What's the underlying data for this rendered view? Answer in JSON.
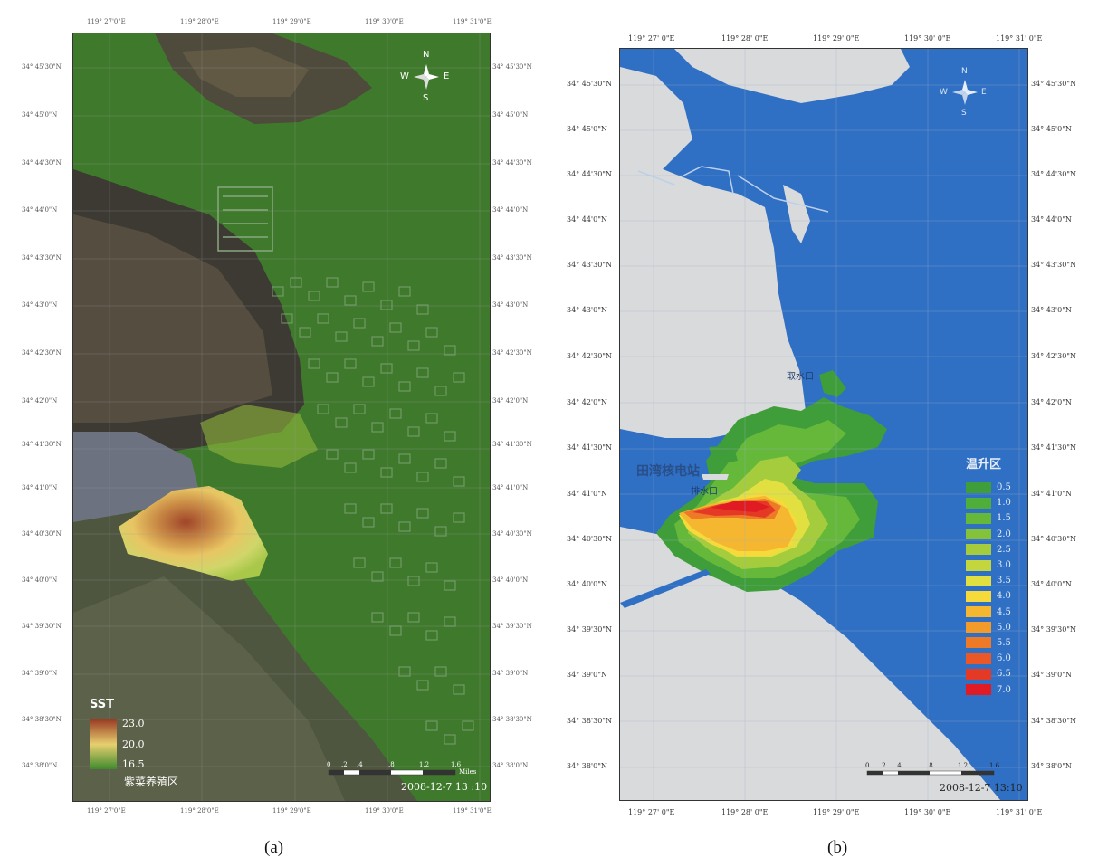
{
  "panel_a": {
    "caption": "(a)",
    "legend_title": "SST",
    "legend_max": "23.0",
    "legend_mid": "20.0",
    "legend_min": "16.5",
    "legend_note": "紫菜养殖区",
    "timestamp": "2008-12-7 13 :10",
    "scale_labels": [
      "0",
      ".2",
      ".4",
      ".8",
      "1.2",
      "1.6"
    ],
    "scale_unit": "Miles",
    "compass": {
      "n": "N",
      "s": "S",
      "e": "E",
      "w": "W"
    },
    "x_ticks": [
      "119° 27'0\"E",
      "119° 28'0\"E",
      "119° 29'0\"E",
      "119° 30'0\"E",
      "119° 31'0\"E"
    ],
    "y_ticks_left": [
      "34° 45'30\"N",
      "34° 45'0\"N",
      "34° 44'30\"N",
      "34° 44'0\"N",
      "34° 43'30\"N",
      "34° 43'0\"N",
      "34° 42'30\"N",
      "34° 42'0\"N",
      "34° 41'30\"N",
      "34° 41'0\"N",
      "34° 40'30\"N",
      "34° 40'0\"N",
      "34° 39'30\"N",
      "34° 39'0\"N",
      "34° 38'30\"N",
      "34° 38'0\"N"
    ],
    "colors": {
      "water": "#3f7a2c",
      "plume_hot": "#a0452a",
      "plume_mid": "#e8c563",
      "plume_cool": "#a9c84a"
    }
  },
  "panel_b": {
    "caption": "(b)",
    "station_label": "田湾核电站",
    "outlet_label": "排水口",
    "intake_label": "取水口",
    "legend_title": "温升区",
    "legend_items": [
      {
        "label": "0.5",
        "color": "#3f9e3a"
      },
      {
        "label": "1.0",
        "color": "#4fae3a"
      },
      {
        "label": "1.5",
        "color": "#66b83a"
      },
      {
        "label": "2.0",
        "color": "#84c23a"
      },
      {
        "label": "2.5",
        "color": "#a4cc3c"
      },
      {
        "label": "3.0",
        "color": "#c4d63e"
      },
      {
        "label": "3.5",
        "color": "#e2e040"
      },
      {
        "label": "4.0",
        "color": "#f6d93a"
      },
      {
        "label": "4.5",
        "color": "#f5b730"
      },
      {
        "label": "5.0",
        "color": "#f29a2a"
      },
      {
        "label": "5.5",
        "color": "#ee7a28"
      },
      {
        "label": "6.0",
        "color": "#e95826"
      },
      {
        "label": "6.5",
        "color": "#e43a25"
      },
      {
        "label": "7.0",
        "color": "#e01b24"
      }
    ],
    "timestamp": "2008-12-7 13:10",
    "scale_labels": [
      "0",
      ".2",
      ".4",
      ".8",
      "1.2",
      "1.6"
    ],
    "compass": {
      "n": "N",
      "s": "S",
      "e": "E",
      "w": "W"
    },
    "x_ticks": [
      "119° 27' 0\"E",
      "119° 28' 0\"E",
      "119° 29' 0\"E",
      "119° 30' 0\"E",
      "119° 31' 0\"E"
    ],
    "y_ticks": [
      "34° 45'30\"N",
      "34° 45'0\"N",
      "34° 44'30\"N",
      "34° 44'0\"N",
      "34° 43'30\"N",
      "34° 43'0\"N",
      "34° 42'30\"N",
      "34° 42'0\"N",
      "34° 41'30\"N",
      "34° 41'0\"N",
      "34° 40'30\"N",
      "34° 40'0\"N",
      "34° 39'30\"N",
      "34° 39'0\"N",
      "34° 38'30\"N",
      "34° 38'0\"N"
    ],
    "colors": {
      "sea": "#2f6fc4",
      "land": "#d9dadb"
    }
  }
}
